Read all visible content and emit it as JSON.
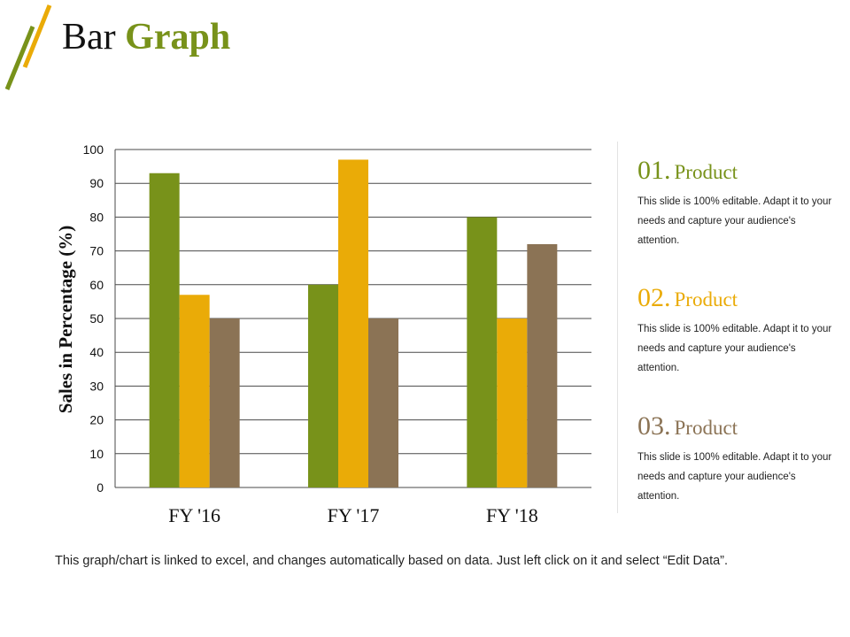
{
  "header": {
    "title_main": "Bar Graph",
    "title_plain": "Bar ",
    "title_accent": "Graph"
  },
  "chart_data": {
    "type": "bar",
    "title": "",
    "categories": [
      "FY '16",
      "FY '17",
      "FY '18"
    ],
    "series": [
      {
        "name": "Product 01",
        "values": [
          93,
          60,
          80
        ],
        "color": "#78921a"
      },
      {
        "name": "Product 02",
        "values": [
          57,
          97,
          50
        ],
        "color": "#eaab07"
      },
      {
        "name": "Product 03",
        "values": [
          50,
          50,
          72
        ],
        "color": "#8b7355"
      }
    ],
    "xlabel": "",
    "ylabel": "Sales in Percentage (%)",
    "ylim": [
      0,
      100
    ],
    "yticks": [
      0,
      10,
      20,
      30,
      40,
      50,
      60,
      70,
      80,
      90,
      100
    ],
    "grid": true,
    "legend": "none"
  },
  "products": [
    {
      "number": "01.",
      "label": "Product",
      "color": "#78921a",
      "desc": "This slide is 100% editable. Adapt it to your needs and capture your audience's attention."
    },
    {
      "number": "02.",
      "label": "Product",
      "color": "#eaab07",
      "desc": "This slide is 100% editable. Adapt it to your needs and capture your audience's attention."
    },
    {
      "number": "03.",
      "label": "Product",
      "color": "#8b7355",
      "desc": "This slide is 100% editable. Adapt it to your needs and capture your audience's attention."
    }
  ],
  "footnote": "This graph/chart is linked to excel, and changes automatically based on data. Just left click on it and select “Edit Data”.",
  "colors": {
    "accent_green": "#78921a",
    "accent_yellow": "#eaab07",
    "accent_brown": "#8b7355"
  }
}
